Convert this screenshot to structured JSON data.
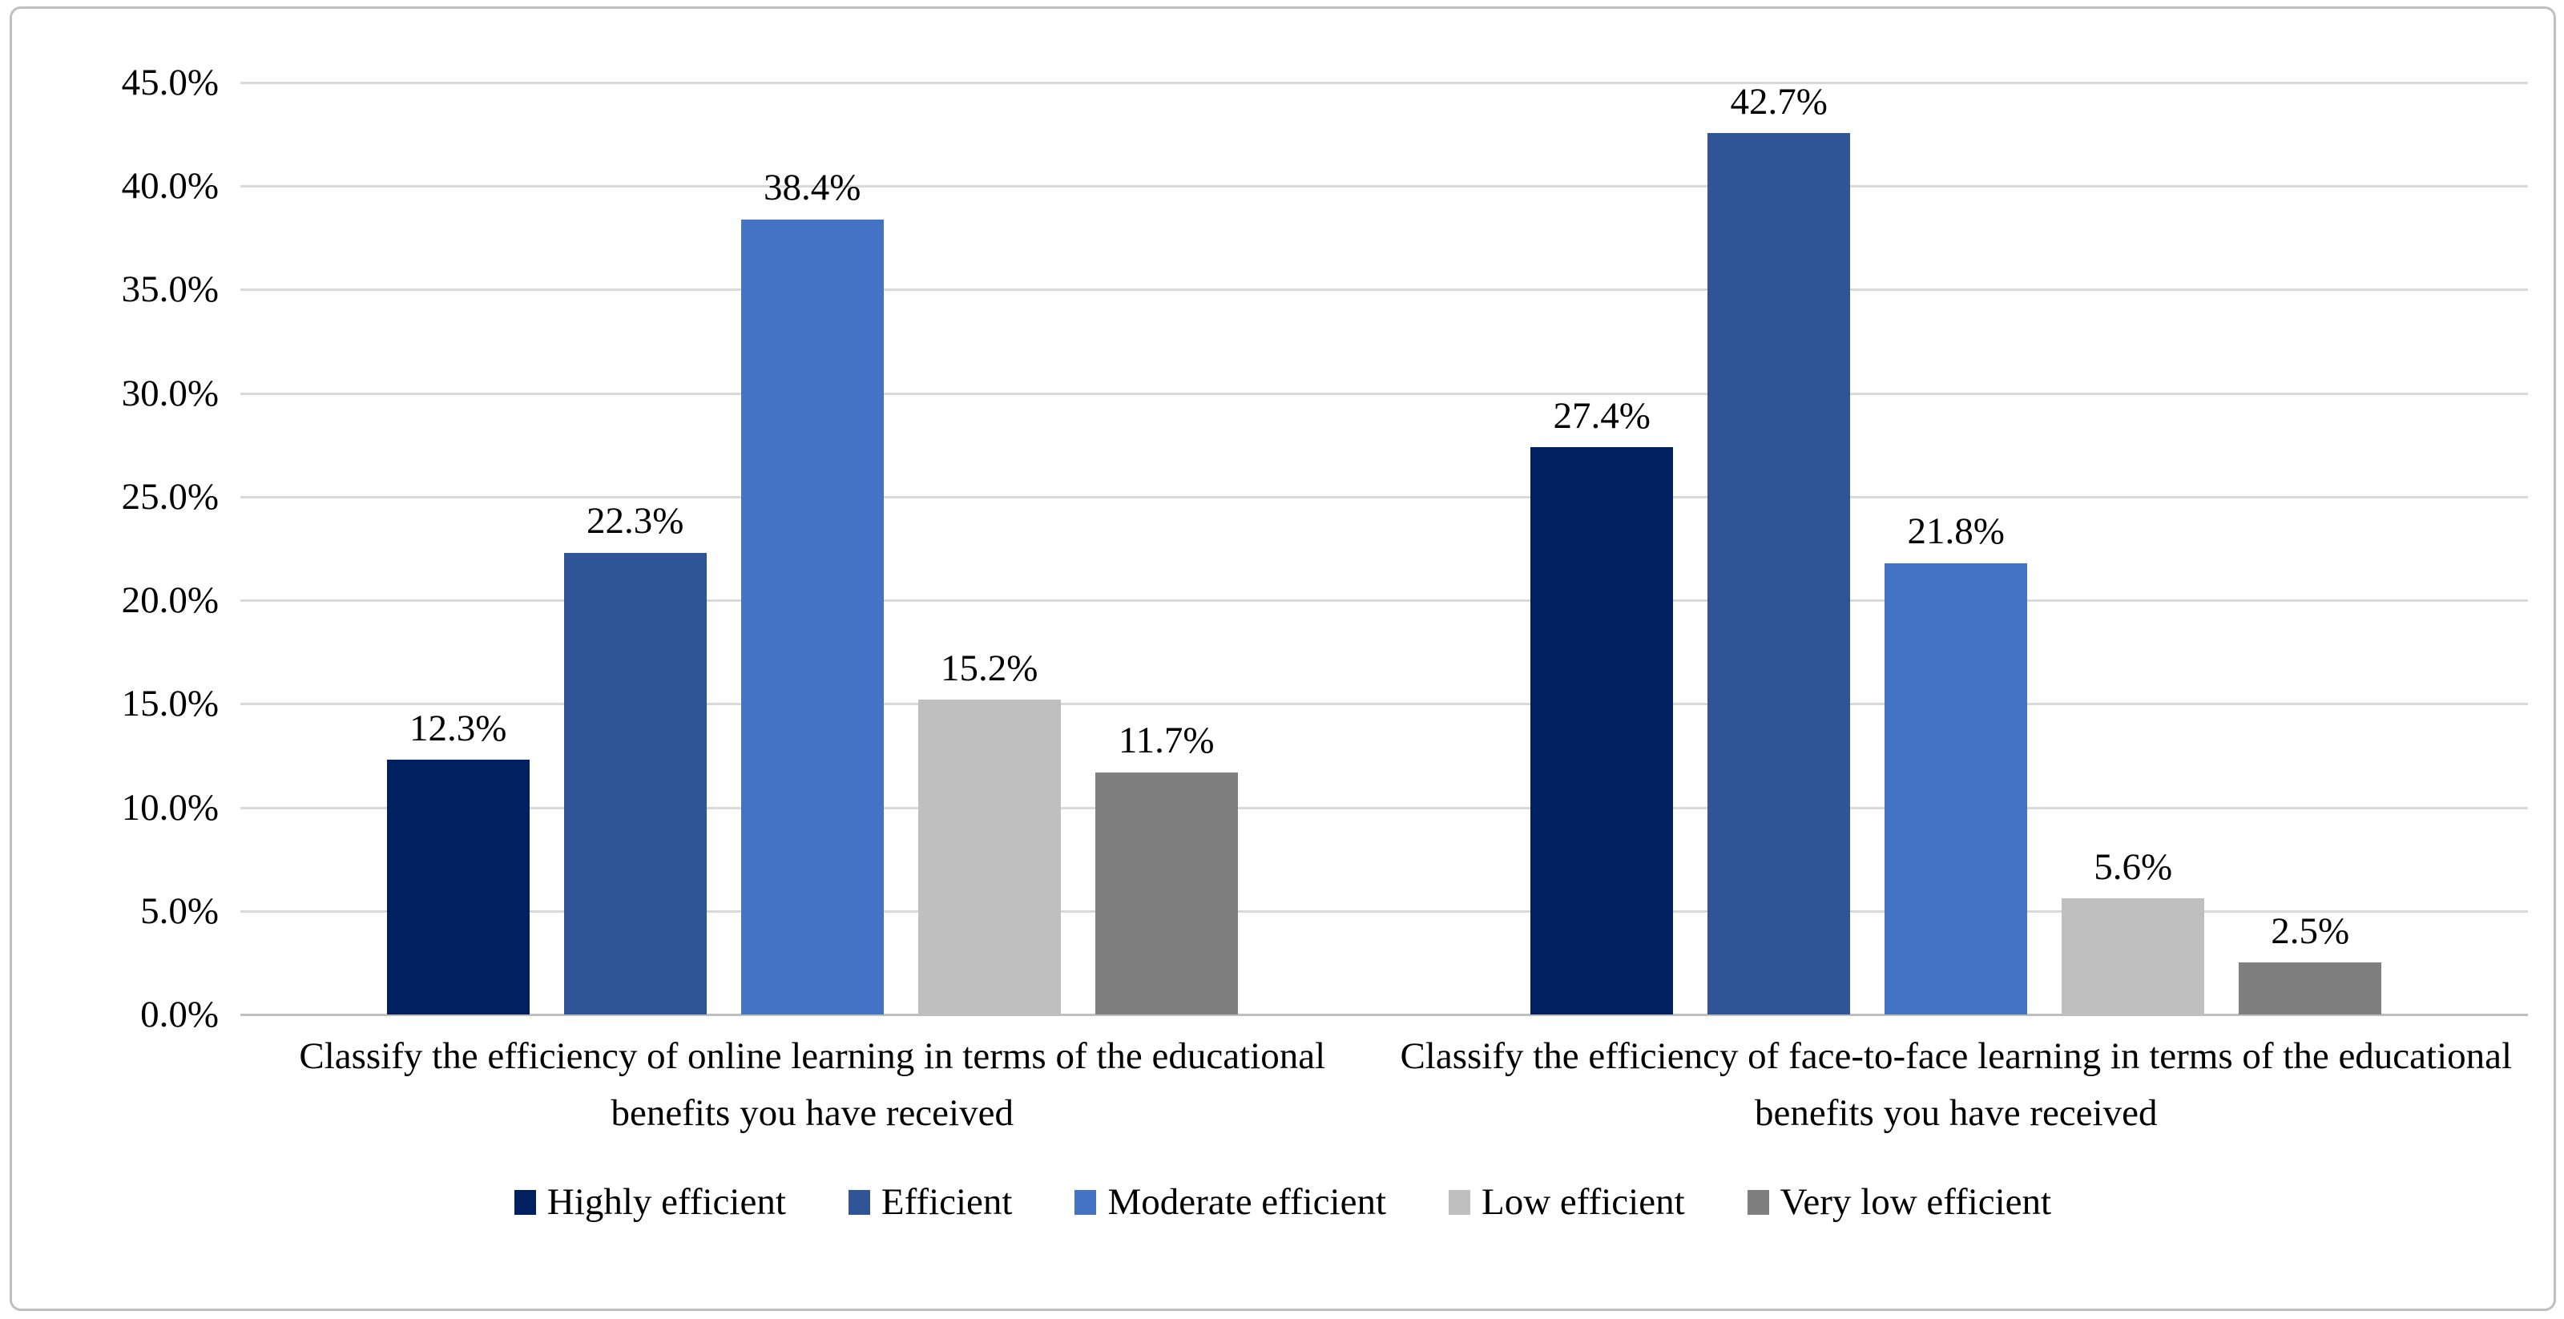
{
  "chart_data": {
    "type": "bar",
    "title": "",
    "xlabel": "",
    "ylabel": "",
    "categories": [
      "Classify the efficiency of online learning in terms of the educational benefits you have received",
      "Classify the efficiency of face-to-face learning in terms of the educational benefits you have received"
    ],
    "series": [
      {
        "name": "Highly efficient",
        "color": "#002060",
        "values": [
          12.3,
          27.4
        ]
      },
      {
        "name": "Efficient",
        "color": "#2F5597",
        "values": [
          22.3,
          42.7
        ]
      },
      {
        "name": "Moderate efficient",
        "color": "#4472C4",
        "values": [
          38.4,
          21.8
        ]
      },
      {
        "name": "Low efficient",
        "color": "#BFBFBF",
        "values": [
          15.2,
          5.6
        ]
      },
      {
        "name": "Very low efficient",
        "color": "#7F7F7F",
        "values": [
          11.7,
          2.5
        ]
      }
    ],
    "data_labels": [
      [
        "12.3%",
        "22.3%",
        "38.4%",
        "15.2%",
        "11.7%"
      ],
      [
        "27.4%",
        "42.7%",
        "21.8%",
        "5.6%",
        "2.5%"
      ]
    ],
    "y_axis": {
      "min": 0,
      "max": 45,
      "step": 5,
      "tick_labels": [
        "0.0%",
        "5.0%",
        "10.0%",
        "15.0%",
        "20.0%",
        "25.0%",
        "30.0%",
        "35.0%",
        "40.0%",
        "45.0%"
      ]
    },
    "grid": true,
    "legend_position": "bottom",
    "legend_entries": [
      "Highly efficient",
      "Efficient",
      "Moderate efficient",
      "Low efficient",
      "Very low efficient"
    ],
    "style": {
      "gridline_color": "#D9D9D9",
      "axis_line_color": "#BFBFBF",
      "frame_border_color": "#BFBFBF",
      "text_color": "#000000",
      "background_color": "#FFFFFF"
    }
  }
}
